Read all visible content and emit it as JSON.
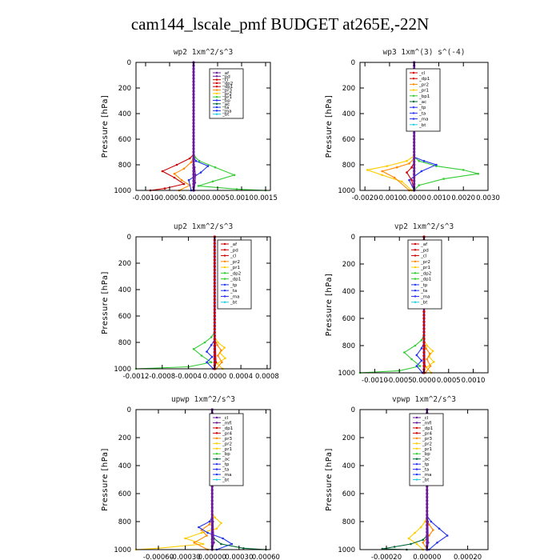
{
  "title": "cam144_lscale_pmf  BUDGET at265E,-22N",
  "colors": {
    "red": "#cc0000",
    "orange": "#ff8800",
    "yellow": "#ffcc00",
    "green": "#33cc33",
    "blue": "#2233ee",
    "purple": "#6a1b9a",
    "cyan": "#22ccdd",
    "darkgreen": "#006633",
    "black": "#000000",
    "magenta": "#cc33cc",
    "crimson": "#ee2244",
    "salmon": "#ff6655"
  },
  "chart_data": [
    {
      "type": "line",
      "title": "wp2  1xm^2/s^3",
      "ylabel": "Pressure [hPa]",
      "xlim": [
        -0.0012,
        0.0016
      ],
      "ylim": [
        1000,
        0
      ],
      "xticks": [
        -0.001,
        -0.0005,
        0,
        0.0005,
        0.001,
        0.0015
      ],
      "xticklabels": [
        "-0.0010",
        "-0.0005",
        "0.0000",
        "0.0005",
        "0.0010",
        "0.0015"
      ],
      "yticks": [
        0,
        200,
        400,
        600,
        800,
        1000
      ],
      "yticklabels": [
        "0",
        "200",
        "400",
        "600",
        "800",
        "1000"
      ],
      "legend": [
        "_af",
        "_pd",
        "_cl",
        "_dp2",
        "_dp1",
        "_pr3",
        "_pr2",
        "_pr1",
        "_bp",
        "_ac",
        "_ta",
        "_ma",
        "_bt"
      ],
      "legend_colors": [
        "purple",
        "purple",
        "red",
        "red",
        "red",
        "orange",
        "yellow",
        "green",
        "blue",
        "darkgreen",
        "blue",
        "blue",
        "cyan"
      ],
      "series": [
        {
          "color": "green",
          "x": [
            0,
            0,
            3e-05,
            0.00012,
            0.00045,
            0.00085,
            0.0004,
            0.0001,
            0.0009,
            0.0015
          ],
          "y": [
            0,
            700,
            740,
            770,
            820,
            880,
            930,
            965,
            990,
            1000
          ]
        },
        {
          "color": "red",
          "x": [
            0,
            0,
            -8e-05,
            -0.00035,
            -0.00065,
            -0.0004,
            -0.0002,
            -0.0006,
            -0.0009
          ],
          "y": [
            0,
            720,
            750,
            800,
            850,
            900,
            950,
            985,
            1000
          ]
        },
        {
          "color": "orange",
          "x": [
            0,
            0,
            -5e-05,
            -0.0002,
            -0.0004,
            -0.00025,
            -8e-05,
            -0.0003
          ],
          "y": [
            0,
            740,
            780,
            830,
            870,
            920,
            960,
            1000
          ]
        },
        {
          "color": "blue",
          "x": [
            0,
            0,
            5e-05,
            0.0003,
            0.00015,
            -0.0001,
            -5e-05
          ],
          "y": [
            0,
            740,
            770,
            810,
            860,
            920,
            1000
          ]
        },
        {
          "color": "purple",
          "x": [
            0,
            0,
            2e-05,
            4e-05,
            3e-05,
            1e-05
          ],
          "y": [
            0,
            760,
            820,
            880,
            940,
            1000
          ]
        }
      ]
    },
    {
      "type": "line",
      "title": "wp3  1xm^(3) s^(-4)",
      "ylabel": "Pressure [hPa]",
      "xlim": [
        -0.0022,
        0.003
      ],
      "ylim": [
        1000,
        0
      ],
      "xticks": [
        -0.002,
        -0.001,
        0,
        0.001,
        0.002,
        0.003
      ],
      "xticklabels": [
        "-0.0020",
        "-0.0010",
        "0.0000",
        "0.0010",
        "0.0020",
        "0.0030"
      ],
      "yticks": [
        0,
        200,
        400,
        600,
        800,
        1000
      ],
      "yticklabels": [
        "0",
        "200",
        "400",
        "600",
        "800",
        "1000"
      ],
      "legend": [
        "_cl",
        "_dp1",
        "_pr2",
        "_pr1",
        "_bp1",
        "_ac",
        "_tp",
        "_ta",
        "_ma",
        "_bt"
      ],
      "legend_colors": [
        "red",
        "red",
        "orange",
        "yellow",
        "green",
        "darkgreen",
        "blue",
        "blue",
        "blue",
        "cyan"
      ],
      "series": [
        {
          "color": "green",
          "x": [
            0,
            0,
            0.0002,
            0.0009,
            0.002,
            0.0026,
            0.0012,
            0.0002,
            0
          ],
          "y": [
            0,
            740,
            770,
            810,
            840,
            870,
            910,
            960,
            1000
          ]
        },
        {
          "color": "yellow",
          "x": [
            0,
            0,
            -0.0003,
            -0.0011,
            -0.0019,
            -0.0013,
            -0.0005,
            -0.0001
          ],
          "y": [
            0,
            730,
            770,
            810,
            840,
            880,
            930,
            1000
          ]
        },
        {
          "color": "orange",
          "x": [
            0,
            0,
            -0.0002,
            -0.0007,
            -0.0013,
            -0.0008,
            -0.0002
          ],
          "y": [
            0,
            750,
            790,
            820,
            850,
            900,
            1000
          ]
        },
        {
          "color": "blue",
          "x": [
            0,
            0,
            0.0004,
            0.0009,
            0.0003,
            -0.0002,
            0
          ],
          "y": [
            0,
            740,
            770,
            800,
            850,
            920,
            1000
          ]
        },
        {
          "color": "red",
          "x": [
            0,
            0,
            -0.0001,
            -0.0003,
            -0.0001,
            0
          ],
          "y": [
            0,
            780,
            820,
            860,
            920,
            1000
          ]
        }
      ]
    },
    {
      "type": "line",
      "title": "up2  1xm^2/s^3",
      "ylabel": "Pressure [hPa]",
      "xlim": [
        -0.0012,
        0.00085
      ],
      "ylim": [
        1000,
        0
      ],
      "xticks": [
        -0.0012,
        -0.0008,
        -0.0004,
        0,
        0.0004,
        0.0008
      ],
      "xticklabels": [
        "-0.0012",
        "-0.0008",
        "-0.0004",
        "0.0000",
        "0.0004",
        "0.0008"
      ],
      "yticks": [
        0,
        200,
        400,
        600,
        800,
        1000
      ],
      "yticklabels": [
        "0",
        "200",
        "400",
        "600",
        "800",
        "1000"
      ],
      "legend": [
        "_af",
        "_pd",
        "_cl",
        "_pr2",
        "_pr1",
        "_dp2",
        "_dp1",
        "_tp",
        "_ta",
        "_ma",
        "_bt"
      ],
      "legend_colors": [
        "red",
        "red",
        "red",
        "orange",
        "yellow",
        "green",
        "green",
        "blue",
        "blue",
        "blue",
        "cyan"
      ],
      "series": [
        {
          "color": "green",
          "x": [
            0,
            0,
            -5e-05,
            -0.00015,
            -0.00032,
            -0.0002,
            -5e-05,
            -0.0004,
            -0.0012
          ],
          "y": [
            0,
            720,
            760,
            800,
            850,
            900,
            950,
            985,
            1000
          ]
        },
        {
          "color": "blue",
          "x": [
            0,
            0,
            -5e-05,
            -0.00012,
            -4e-05,
            -0.00012,
            -2e-05
          ],
          "y": [
            0,
            780,
            820,
            870,
            910,
            950,
            1000
          ]
        },
        {
          "color": "yellow",
          "x": [
            0,
            0,
            5e-05,
            0.00015,
            8e-05,
            0.00016,
            4e-05,
            0.00012
          ],
          "y": [
            0,
            760,
            800,
            840,
            880,
            920,
            960,
            1000
          ]
        },
        {
          "color": "orange",
          "x": [
            0,
            0,
            4e-05,
            0.0001,
            5e-05,
            0.00011,
            2e-05
          ],
          "y": [
            0,
            780,
            820,
            860,
            900,
            950,
            1000
          ]
        },
        {
          "color": "red",
          "x": [
            0,
            0,
            1e-05,
            2e-05,
            0
          ],
          "y": [
            0,
            600,
            800,
            950,
            1000
          ]
        }
      ]
    },
    {
      "type": "line",
      "title": "vp2  1xm^2/s^3",
      "ylabel": "Pressure [hPa]",
      "xlim": [
        -0.0013,
        0.0013
      ],
      "ylim": [
        1000,
        0
      ],
      "xticks": [
        -0.001,
        -0.0005,
        0,
        0.0005,
        0.001
      ],
      "xticklabels": [
        "-0.0010",
        "-0.0005",
        "0.0000",
        "0.0005",
        "0.0010"
      ],
      "yticks": [
        0,
        200,
        400,
        600,
        800,
        1000
      ],
      "yticklabels": [
        "0",
        "200",
        "400",
        "600",
        "800",
        "1000"
      ],
      "legend": [
        "_af",
        "_pd",
        "_cl",
        "_pr2",
        "_pr1",
        "_dp2",
        "_dp1",
        "_tp",
        "_ta",
        "_ma",
        "_bt"
      ],
      "legend_colors": [
        "red",
        "red",
        "red",
        "orange",
        "yellow",
        "green",
        "green",
        "blue",
        "blue",
        "blue",
        "cyan"
      ],
      "series": [
        {
          "color": "green",
          "x": [
            0,
            0,
            -5e-05,
            -0.00018,
            -0.0004,
            -0.00025,
            -8e-05,
            -0.0005,
            -0.0013
          ],
          "y": [
            0,
            720,
            760,
            800,
            850,
            900,
            950,
            985,
            1000
          ]
        },
        {
          "color": "blue",
          "x": [
            0,
            0,
            -5e-05,
            -0.00015,
            -5e-05,
            -0.00015,
            -3e-05
          ],
          "y": [
            0,
            780,
            820,
            870,
            910,
            950,
            1000
          ]
        },
        {
          "color": "yellow",
          "x": [
            0,
            0,
            6e-05,
            0.00018,
            0.0001,
            0.0002,
            5e-05,
            0.00015
          ],
          "y": [
            0,
            760,
            800,
            840,
            880,
            920,
            960,
            1000
          ]
        },
        {
          "color": "orange",
          "x": [
            0,
            0,
            4e-05,
            0.00012,
            6e-05,
            0.00013,
            3e-05
          ],
          "y": [
            0,
            780,
            820,
            860,
            900,
            950,
            1000
          ]
        },
        {
          "color": "red",
          "x": [
            0,
            0,
            1e-05,
            2e-05,
            0
          ],
          "y": [
            0,
            600,
            800,
            950,
            1000
          ]
        }
      ]
    },
    {
      "type": "line",
      "title": "upwp  1xm^2/s^3",
      "ylabel": "Pressure [hPa]",
      "xlim": [
        -0.00085,
        0.00065
      ],
      "ylim": [
        1000,
        0
      ],
      "xticks": [
        -0.0006,
        -0.0003,
        0,
        0.0003,
        0.0006
      ],
      "xticklabels": [
        "-0.00060",
        "-0.00030",
        "0.00000",
        "0.00030",
        "0.00060"
      ],
      "yticks": [
        0,
        200,
        400,
        600,
        800,
        1000
      ],
      "yticklabels": [
        "0",
        "200",
        "400",
        "600",
        "800",
        "1000"
      ],
      "legend": [
        "_cl",
        "_mfl",
        "_dp1",
        "_pr4",
        "_pr3",
        "_pr2",
        "_pr1",
        "_bp",
        "_ac",
        "_tp",
        "_ta",
        "_ma",
        "_bt"
      ],
      "legend_colors": [
        "purple",
        "purple",
        "red",
        "red",
        "orange",
        "yellow",
        "yellow",
        "green",
        "darkgreen",
        "blue",
        "blue",
        "blue",
        "cyan"
      ],
      "series": [
        {
          "color": "yellow",
          "x": [
            0,
            0,
            3e-05,
            0.0001,
            5e-05,
            -0.00012,
            -0.0003,
            -0.0001,
            -0.0006,
            -0.00085
          ],
          "y": [
            0,
            740,
            770,
            810,
            850,
            880,
            920,
            960,
            990,
            1000
          ]
        },
        {
          "color": "orange",
          "x": [
            0,
            0,
            -3e-05,
            -0.00012,
            -6e-05,
            -0.0002,
            -5e-05
          ],
          "y": [
            0,
            780,
            820,
            860,
            900,
            950,
            1000
          ]
        },
        {
          "color": "blue",
          "x": [
            0,
            0,
            -3e-05,
            -0.00015,
            -5e-05,
            0.00012,
            0.00022,
            5e-05
          ],
          "y": [
            0,
            770,
            800,
            840,
            880,
            920,
            960,
            1000
          ]
        },
        {
          "color": "darkgreen",
          "x": [
            0,
            0,
            2e-05,
            0.0001,
            0.00035,
            0.0006
          ],
          "y": [
            0,
            880,
            920,
            960,
            990,
            1000
          ]
        },
        {
          "color": "purple",
          "x": [
            0,
            0,
            1e-05,
            2e-05,
            0
          ],
          "y": [
            0,
            600,
            800,
            950,
            1000
          ]
        }
      ]
    },
    {
      "type": "line",
      "title": "vpwp  1xm^2/s^3",
      "ylabel": "Pressure [hPa]",
      "xlim": [
        -0.00033,
        0.0003
      ],
      "ylim": [
        1000,
        0
      ],
      "xticks": [
        -0.0002,
        0,
        0.0002
      ],
      "xticklabels": [
        "-0.00020",
        "0.00000",
        "0.00020"
      ],
      "yticks": [
        0,
        200,
        400,
        600,
        800,
        1000
      ],
      "yticklabels": [
        "0",
        "200",
        "400",
        "600",
        "800",
        "1000"
      ],
      "legend": [
        "_cl",
        "_mfl",
        "_dp1",
        "_pr4",
        "_pr3",
        "_pr2",
        "_pr1",
        "_bp",
        "_ac",
        "_tp",
        "_ta",
        "_ma",
        "_bt"
      ],
      "legend_colors": [
        "purple",
        "purple",
        "red",
        "red",
        "orange",
        "yellow",
        "yellow",
        "green",
        "darkgreen",
        "blue",
        "blue",
        "blue",
        "cyan"
      ],
      "series": [
        {
          "color": "yellow",
          "x": [
            0,
            0,
            -1e-05,
            -3e-05,
            -6e-05,
            -9e-05,
            -5e-05,
            -2e-05
          ],
          "y": [
            0,
            760,
            800,
            840,
            880,
            920,
            960,
            1000
          ]
        },
        {
          "color": "orange",
          "x": [
            0,
            0,
            1e-05,
            3e-05,
            1e-05,
            -2e-05,
            0
          ],
          "y": [
            0,
            780,
            820,
            860,
            900,
            950,
            1000
          ]
        },
        {
          "color": "blue",
          "x": [
            0,
            0,
            2e-05,
            6e-05,
            0.0001,
            5e-05,
            1e-05
          ],
          "y": [
            0,
            760,
            800,
            850,
            900,
            950,
            1000
          ]
        },
        {
          "color": "darkgreen",
          "x": [
            0,
            0,
            -2e-05,
            -8e-05,
            -0.00016,
            -0.00022,
            -0.0001
          ],
          "y": [
            0,
            900,
            930,
            960,
            980,
            995,
            1000
          ]
        },
        {
          "color": "purple",
          "x": [
            0,
            0,
            4e-06,
            6e-06,
            0
          ],
          "y": [
            0,
            600,
            800,
            950,
            1000
          ]
        }
      ]
    }
  ]
}
